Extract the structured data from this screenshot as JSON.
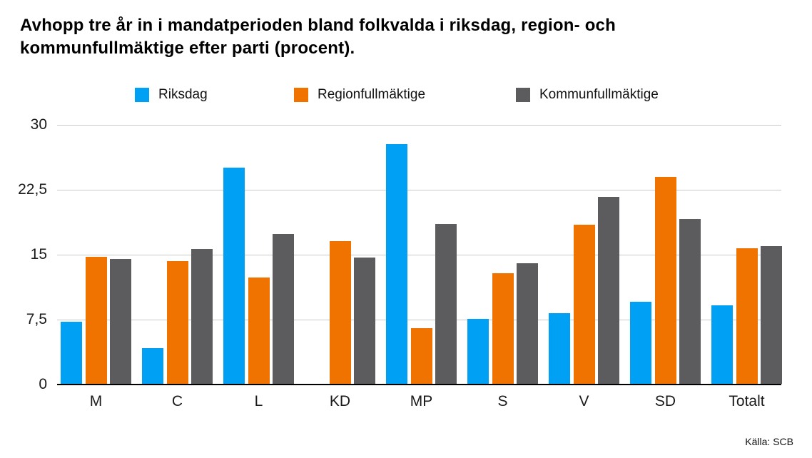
{
  "title": {
    "line1": "Avhopp tre år in i mandatperioden bland folkvalda i riksdag, region- och",
    "line2": "kommunfullmäktige efter parti (procent)."
  },
  "legend": {
    "items": [
      {
        "label": "Riksdag",
        "color": "#00A1F5"
      },
      {
        "label": "Regionfullmäktige",
        "color": "#F07300"
      },
      {
        "label": "Kommunfullmäktige",
        "color": "#5C5C5E"
      }
    ]
  },
  "source": "Källa: SCB",
  "chart_data": {
    "type": "bar",
    "title": "Avhopp tre år in i mandatperioden bland folkvalda i riksdag, region- och kommunfullmäktige efter parti (procent).",
    "categories": [
      "M",
      "C",
      "L",
      "KD",
      "MP",
      "S",
      "V",
      "SD",
      "Totalt"
    ],
    "series": [
      {
        "name": "Riksdag",
        "color": "#00A1F5",
        "values": [
          7.2,
          4.1,
          25.0,
          0,
          27.7,
          7.5,
          8.2,
          9.5,
          9.1
        ]
      },
      {
        "name": "Regionfullmäktige",
        "color": "#F07300",
        "values": [
          14.7,
          14.2,
          12.3,
          16.5,
          6.4,
          12.8,
          18.4,
          23.9,
          15.7
        ]
      },
      {
        "name": "Kommunfullmäktige",
        "color": "#5C5C5E",
        "values": [
          14.4,
          15.6,
          17.3,
          14.6,
          18.5,
          13.9,
          21.6,
          19.0,
          15.9
        ]
      }
    ],
    "ylim": [
      0,
      30
    ],
    "yticks": [
      {
        "value": 0,
        "label": "0"
      },
      {
        "value": 7.5,
        "label": "7,5"
      },
      {
        "value": 15,
        "label": "15"
      },
      {
        "value": 22.5,
        "label": "22,5"
      },
      {
        "value": 30,
        "label": "30"
      }
    ],
    "xlabel": "",
    "ylabel": "",
    "grid": true,
    "legend_position": "top",
    "source": "Källa: SCB"
  }
}
